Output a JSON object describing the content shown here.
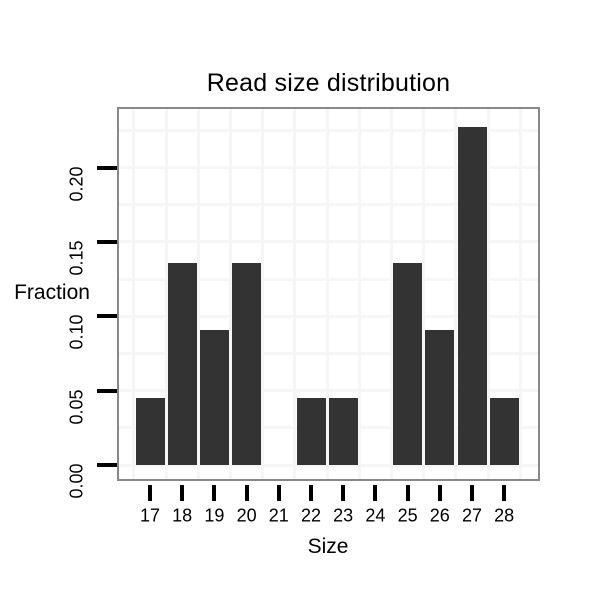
{
  "chart_data": {
    "type": "bar",
    "title": "Read size distribution",
    "xlabel": "Size",
    "ylabel": "Fraction",
    "categories": [
      17,
      18,
      19,
      20,
      21,
      22,
      23,
      24,
      25,
      26,
      27,
      28
    ],
    "values": [
      0.045,
      0.136,
      0.091,
      0.136,
      0,
      0.045,
      0.045,
      0,
      0.136,
      0.091,
      0.227,
      0.045
    ],
    "x_tick_labels": [
      "17",
      "18",
      "19",
      "20",
      "21",
      "22",
      "23",
      "24",
      "25",
      "26",
      "27",
      "28"
    ],
    "y_tick_labels": [
      "0.00",
      "0.05",
      "0.10",
      "0.15",
      "0.20"
    ],
    "y_ticks": [
      0,
      0.05,
      0.1,
      0.15,
      0.2
    ],
    "y_minor_step": 0.025,
    "ylim": [
      -0.011,
      0.24
    ],
    "grid": "faint major and minor gridlines",
    "legend": "none"
  },
  "colors": {
    "bar": "#333333",
    "panel_border": "#888888",
    "grid": "#f6f6f6",
    "text": "#000000",
    "background": "#ffffff"
  }
}
